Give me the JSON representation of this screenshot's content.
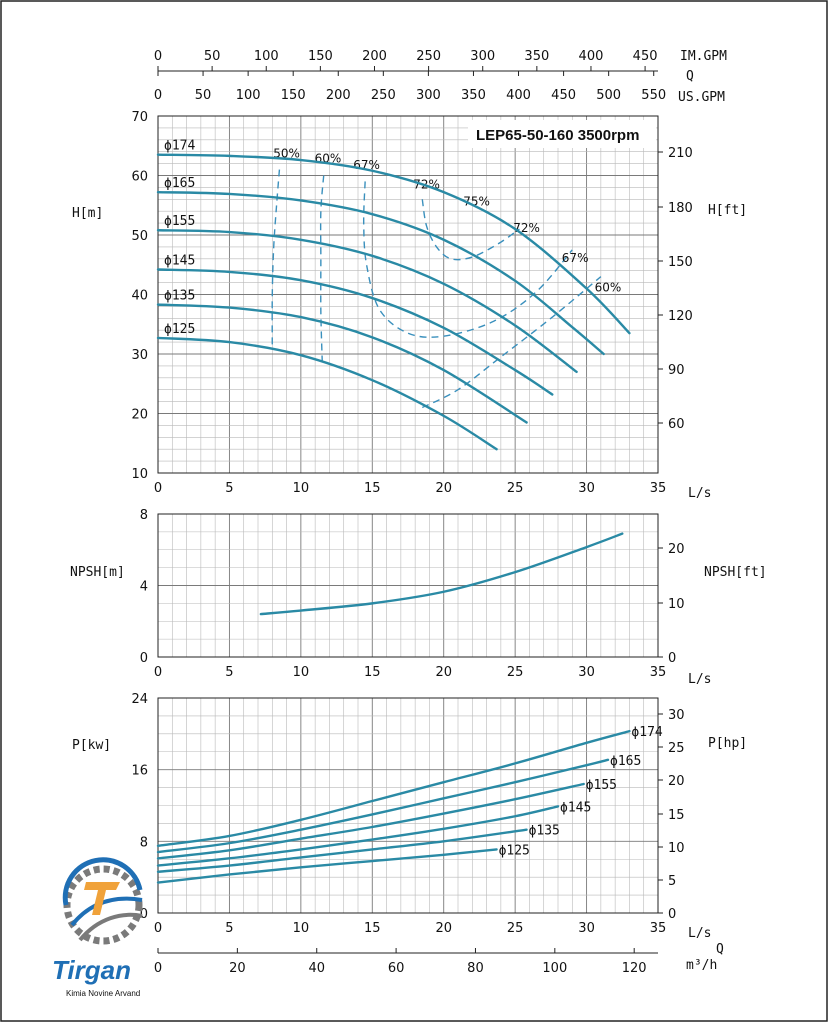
{
  "colors": {
    "curve": "#2a8aa5",
    "iso": "#3a90bd",
    "grid_major": "#7a7a7a",
    "grid_minor": "#b9b9b9",
    "logo_blue": "#1f6fb5",
    "logo_orange": "#f0a23a",
    "logo_gray": "#7a7a7a"
  },
  "title": "LEP65-50-160 3500rpm",
  "top_axes": {
    "q_label": "Q",
    "im_gpm_label": "IM.GPM",
    "im_gpm_ticks": [
      "0",
      "50",
      "100",
      "150",
      "200",
      "250",
      "300",
      "350",
      "400",
      "450"
    ],
    "us_gpm_label": "US.GPM",
    "us_gpm_ticks": [
      "0",
      "50",
      "100",
      "150",
      "200",
      "250",
      "300",
      "350",
      "400",
      "450",
      "500",
      "550"
    ]
  },
  "bottom_axes": {
    "q_label": "Q",
    "m3h_label": "m³/h",
    "m3h_ticks": [
      "0",
      "20",
      "40",
      "60",
      "80",
      "100",
      "120"
    ]
  },
  "logo": {
    "name": "Tirgan",
    "subtitle": "Kimia Novine Arvand",
    "icon": "gear-logo-icon"
  },
  "chart_data": [
    {
      "type": "line",
      "name": "head",
      "ylabel": "H[m]",
      "ylabel_right": "H[ft]",
      "xlabel": "L/s",
      "xlim": [
        0,
        35
      ],
      "ylim": [
        10,
        70
      ],
      "x_ticks": [
        "0",
        "5",
        "10",
        "15",
        "20",
        "25",
        "30",
        "35"
      ],
      "y_ticks": [
        "10",
        "20",
        "30",
        "40",
        "50",
        "60",
        "70"
      ],
      "y_right_ticks": [
        "60",
        "90",
        "120",
        "150",
        "180",
        "210"
      ],
      "series": [
        {
          "name": "ϕ174",
          "x": [
            0,
            5,
            10,
            15,
            20,
            25,
            30,
            33
          ],
          "y": [
            63.5,
            63.3,
            62.6,
            60.8,
            57.2,
            51.0,
            41.0,
            33.5
          ]
        },
        {
          "name": "ϕ165",
          "x": [
            0,
            5,
            10,
            15,
            20,
            25,
            29,
            31.2
          ],
          "y": [
            57.2,
            56.9,
            55.8,
            53.5,
            49.2,
            42.3,
            34.5,
            30.0
          ]
        },
        {
          "name": "ϕ155",
          "x": [
            0,
            5,
            10,
            15,
            20,
            25,
            29.3
          ],
          "y": [
            50.8,
            50.5,
            49.2,
            46.5,
            41.8,
            34.8,
            27.0
          ]
        },
        {
          "name": "ϕ145",
          "x": [
            0,
            5,
            10,
            15,
            20,
            25,
            27.6
          ],
          "y": [
            44.2,
            43.8,
            42.4,
            39.4,
            34.4,
            27.3,
            23.2
          ]
        },
        {
          "name": "ϕ135",
          "x": [
            0,
            5,
            10,
            15,
            20,
            25.8
          ],
          "y": [
            38.3,
            37.8,
            36.2,
            32.8,
            27.3,
            18.5
          ]
        },
        {
          "name": "ϕ125",
          "x": [
            0,
            5,
            10,
            15,
            20,
            23.7
          ],
          "y": [
            32.7,
            32.0,
            29.8,
            25.6,
            19.6,
            14.0
          ]
        }
      ],
      "efficiency_curves": [
        {
          "name": "50%",
          "x": [
            8.5,
            8.3,
            8.1,
            8.0,
            8.0
          ],
          "y": [
            61.0,
            55.0,
            48.0,
            40.0,
            31.0
          ]
        },
        {
          "name": "60%",
          "x": [
            11.6,
            11.4,
            11.4,
            11.4,
            11.5
          ],
          "y": [
            60.0,
            54.0,
            46.0,
            37.0,
            28.5
          ]
        },
        {
          "name": "67%",
          "x": [
            14.5,
            14.4,
            14.6,
            15.5,
            17.5,
            20.0,
            23.5,
            26.5,
            29.0
          ],
          "y": [
            59.0,
            52.0,
            45.0,
            37.5,
            33.5,
            33.0,
            35.5,
            40.5,
            47.5
          ]
        },
        {
          "name": "72%",
          "x": [
            18.5,
            18.8,
            19.5,
            20.5,
            22.0,
            23.8,
            25.3
          ],
          "y": [
            56.0,
            51.5,
            48.0,
            46.0,
            46.3,
            48.5,
            51.0
          ]
        },
        {
          "name": "60% (right)",
          "x": [
            18.5,
            21.0,
            24.0,
            27.5,
            31.0
          ],
          "y": [
            21.0,
            24.0,
            29.5,
            36.0,
            43.0
          ]
        }
      ],
      "efficiency_labels": [
        {
          "text": "50%",
          "x": 9.0,
          "y": 63.0
        },
        {
          "text": "60%",
          "x": 11.9,
          "y": 62.2
        },
        {
          "text": "67%",
          "x": 14.6,
          "y": 61.1
        },
        {
          "text": "72%",
          "x": 18.8,
          "y": 57.8
        },
        {
          "text": "75%",
          "x": 22.3,
          "y": 55.0
        },
        {
          "text": "72%",
          "x": 25.8,
          "y": 50.5
        },
        {
          "text": "67%",
          "x": 29.2,
          "y": 45.5
        },
        {
          "text": "60%",
          "x": 31.5,
          "y": 40.5
        }
      ]
    },
    {
      "type": "line",
      "name": "npsh",
      "ylabel": "NPSH[m]",
      "ylabel_right": "NPSH[ft]",
      "xlabel": "L/s",
      "xlim": [
        0,
        35
      ],
      "ylim": [
        0,
        8
      ],
      "x_ticks": [
        "0",
        "5",
        "10",
        "15",
        "20",
        "25",
        "30",
        "35"
      ],
      "y_ticks": [
        "0",
        "4",
        "8"
      ],
      "y_right_ticks": [
        "0",
        "10",
        "20"
      ],
      "series": [
        {
          "name": "NPSH",
          "x": [
            7.2,
            10,
            15,
            20,
            25,
            30,
            32.5
          ],
          "y": [
            2.4,
            2.6,
            3.0,
            3.65,
            4.75,
            6.15,
            6.9
          ]
        }
      ]
    },
    {
      "type": "line",
      "name": "power",
      "ylabel": "P[kw]",
      "ylabel_right": "P[hp]",
      "xlabel": "L/s",
      "xlim": [
        0,
        35
      ],
      "ylim": [
        0,
        24
      ],
      "x_ticks": [
        "0",
        "5",
        "10",
        "15",
        "20",
        "25",
        "30",
        "35"
      ],
      "y_ticks": [
        "0",
        "8",
        "16",
        "24"
      ],
      "y_right_ticks": [
        "0",
        "5",
        "10",
        "15",
        "20",
        "25",
        "30"
      ],
      "series": [
        {
          "name": "ϕ174",
          "x": [
            0,
            5,
            10,
            15,
            20,
            25,
            30,
            33
          ],
          "y": [
            7.5,
            8.6,
            10.4,
            12.5,
            14.6,
            16.7,
            19.0,
            20.3
          ]
        },
        {
          "name": "ϕ165",
          "x": [
            0,
            5,
            10,
            15,
            20,
            25,
            30,
            31.5
          ],
          "y": [
            6.8,
            7.8,
            9.3,
            11.0,
            12.8,
            14.6,
            16.5,
            17.1
          ]
        },
        {
          "name": "ϕ155",
          "x": [
            0,
            5,
            10,
            15,
            20,
            25,
            29.8
          ],
          "y": [
            6.1,
            7.0,
            8.3,
            9.6,
            11.1,
            12.7,
            14.4
          ]
        },
        {
          "name": "ϕ145",
          "x": [
            0,
            5,
            10,
            15,
            20,
            25,
            28
          ],
          "y": [
            5.3,
            6.1,
            7.1,
            8.2,
            9.4,
            10.8,
            11.9
          ]
        },
        {
          "name": "ϕ135",
          "x": [
            0,
            5,
            10,
            15,
            20,
            25.8
          ],
          "y": [
            4.6,
            5.3,
            6.2,
            7.1,
            8.0,
            9.3
          ]
        },
        {
          "name": "ϕ125",
          "x": [
            0,
            5,
            10,
            15,
            20,
            23.7
          ],
          "y": [
            3.4,
            4.3,
            5.1,
            5.8,
            6.5,
            7.1
          ]
        }
      ]
    }
  ]
}
